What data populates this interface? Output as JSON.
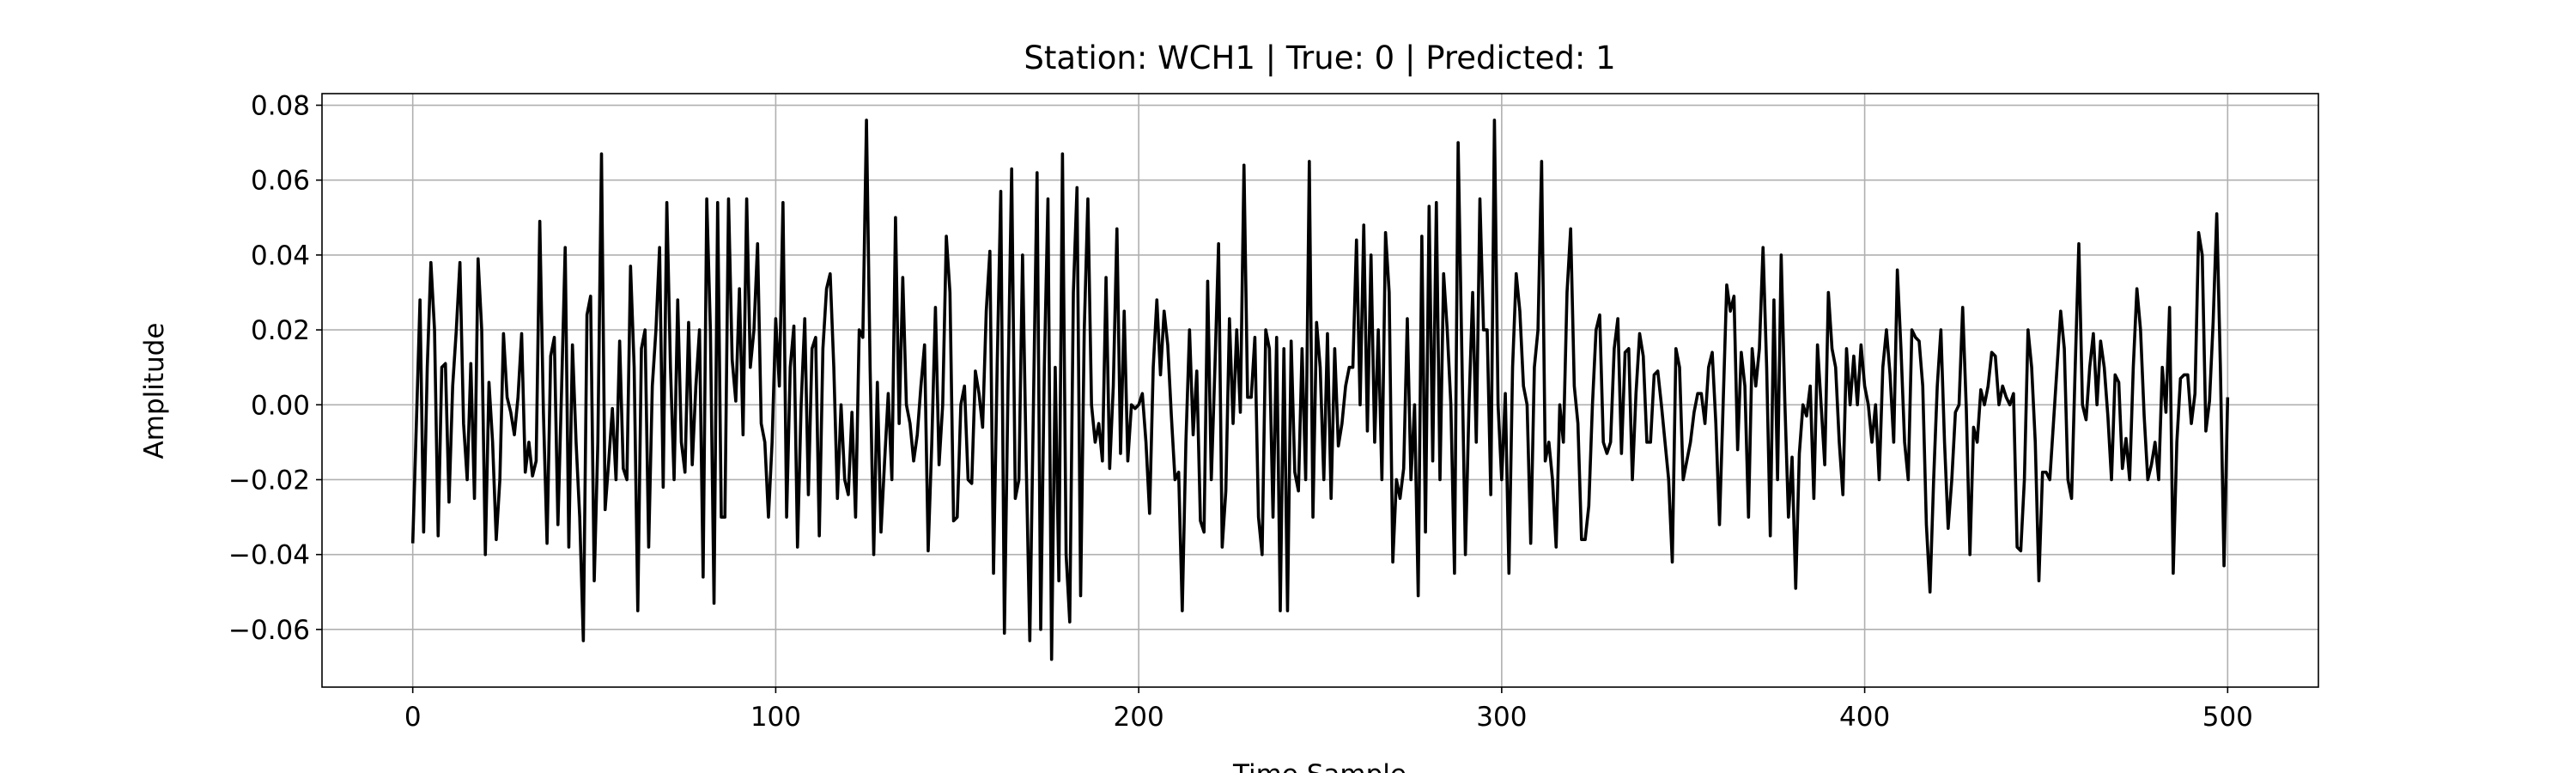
{
  "chart_data": {
    "type": "line",
    "title": "Station: WCH1 | True: 0 | Predicted: 1",
    "xlabel": "Time Sample",
    "ylabel": "Amplitude",
    "xlim": [
      -25,
      525
    ],
    "ylim": [
      -0.0754,
      0.0831
    ],
    "xticks": [
      0,
      100,
      200,
      300,
      400,
      500
    ],
    "yticks": [
      {
        "value": -0.06,
        "label": "−0.06"
      },
      {
        "value": -0.04,
        "label": "−0.04"
      },
      {
        "value": -0.02,
        "label": "−0.02"
      },
      {
        "value": 0,
        "label": "0.00"
      },
      0.02,
      0.04,
      0.06,
      0.08
    ],
    "grid": true,
    "series": [
      {
        "color": "#000000",
        "x": [
          0,
          1,
          2,
          3,
          4,
          5,
          6,
          7,
          8,
          9,
          10,
          11,
          12,
          13,
          14,
          15,
          16,
          17,
          18,
          19,
          20,
          21,
          22,
          23,
          24,
          25,
          26,
          27,
          28,
          29,
          30,
          31,
          32,
          33,
          34,
          35,
          36,
          37,
          38,
          39,
          40,
          41,
          42,
          43,
          44,
          45,
          46,
          47,
          48,
          49,
          50,
          51,
          52,
          53,
          54,
          55,
          56,
          57,
          58,
          59,
          60,
          61,
          62,
          63,
          64,
          65,
          66,
          67,
          68,
          69,
          70,
          71,
          72,
          73,
          74,
          75,
          76,
          77,
          78,
          79,
          80,
          81,
          82,
          83,
          84,
          85,
          86,
          87,
          88,
          89,
          90,
          91,
          92,
          93,
          94,
          95,
          96,
          97,
          98,
          99,
          100,
          101,
          102,
          103,
          104,
          105,
          106,
          107,
          108,
          109,
          110,
          111,
          112,
          113,
          114,
          115,
          116,
          117,
          118,
          119,
          120,
          121,
          122,
          123,
          124,
          125,
          126,
          127,
          128,
          129,
          130,
          131,
          132,
          133,
          134,
          135,
          136,
          137,
          138,
          139,
          140,
          141,
          142,
          143,
          144,
          145,
          146,
          147,
          148,
          149,
          150,
          151,
          152,
          153,
          154,
          155,
          156,
          157,
          158,
          159,
          160,
          161,
          162,
          163,
          164,
          165,
          166,
          167,
          168,
          169,
          170,
          171,
          172,
          173,
          174,
          175,
          176,
          177,
          178,
          179,
          180,
          181,
          182,
          183,
          184,
          185,
          186,
          187,
          188,
          189,
          190,
          191,
          192,
          193,
          194,
          195,
          196,
          197,
          198,
          199,
          200,
          201,
          202,
          203,
          204,
          205,
          206,
          207,
          208,
          209,
          210,
          211,
          212,
          213,
          214,
          215,
          216,
          217,
          218,
          219,
          220,
          221,
          222,
          223,
          224,
          225,
          226,
          227,
          228,
          229,
          230,
          231,
          232,
          233,
          234,
          235,
          236,
          237,
          238,
          239,
          240,
          241,
          242,
          243,
          244,
          245,
          246,
          247,
          248,
          249,
          250,
          251,
          252,
          253,
          254,
          255,
          256,
          257,
          258,
          259,
          260,
          261,
          262,
          263,
          264,
          265,
          266,
          267,
          268,
          269,
          270,
          271,
          272,
          273,
          274,
          275,
          276,
          277,
          278,
          279,
          280,
          281,
          282,
          283,
          284,
          285,
          286,
          287,
          288,
          289,
          290,
          291,
          292,
          293,
          294,
          295,
          296,
          297,
          298,
          299,
          300,
          301,
          302,
          303,
          304,
          305,
          306,
          307,
          308,
          309,
          310,
          311,
          312,
          313,
          314,
          315,
          316,
          317,
          318,
          319,
          320,
          321,
          322,
          323,
          324,
          325,
          326,
          327,
          328,
          329,
          330,
          331,
          332,
          333,
          334,
          335,
          336,
          337,
          338,
          339,
          340,
          341,
          342,
          343,
          344,
          345,
          346,
          347,
          348,
          349,
          350,
          351,
          352,
          353,
          354,
          355,
          356,
          357,
          358,
          359,
          360,
          361,
          362,
          363,
          364,
          365,
          366,
          367,
          368,
          369,
          370,
          371,
          372,
          373,
          374,
          375,
          376,
          377,
          378,
          379,
          380,
          381,
          382,
          383,
          384,
          385,
          386,
          387,
          388,
          389,
          390,
          391,
          392,
          393,
          394,
          395,
          396,
          397,
          398,
          399,
          400,
          401,
          402,
          403,
          404,
          405,
          406,
          407,
          408,
          409,
          410,
          411,
          412,
          413,
          414,
          415,
          416,
          417,
          418,
          419,
          420,
          421,
          422,
          423,
          424,
          425,
          426,
          427,
          428,
          429,
          430,
          431,
          432,
          433,
          434,
          435,
          436,
          437,
          438,
          439,
          440,
          441,
          442,
          443,
          444,
          445,
          446,
          447,
          448,
          449,
          450,
          451,
          452,
          453,
          454,
          455,
          456,
          457,
          458,
          459,
          460,
          461,
          462,
          463,
          464,
          465,
          466,
          467,
          468,
          469,
          470,
          471,
          472,
          473,
          474,
          475,
          476,
          477,
          478,
          479,
          480,
          481,
          482,
          483,
          484,
          485,
          486,
          487,
          488,
          489,
          490,
          491,
          492,
          493,
          494,
          495,
          496,
          497,
          498,
          499,
          500
        ],
        "values": [
          -0.037,
          -0.005,
          0.028,
          -0.034,
          0.01,
          0.038,
          0.02,
          -0.035,
          0.01,
          0.011,
          -0.026,
          0.005,
          0.02,
          0.038,
          -0.005,
          -0.02,
          0.011,
          -0.025,
          0.039,
          0.02,
          -0.04,
          0.006,
          -0.01,
          -0.036,
          -0.02,
          0.019,
          0.002,
          -0.002,
          -0.008,
          0.002,
          0.019,
          -0.018,
          -0.01,
          -0.019,
          -0.015,
          0.049,
          -0.002,
          -0.037,
          0.013,
          0.018,
          -0.032,
          0.004,
          0.042,
          -0.038,
          0.016,
          -0.01,
          -0.03,
          -0.063,
          0.024,
          0.029,
          -0.047,
          -0.01,
          0.067,
          -0.028,
          -0.015,
          -0.001,
          -0.02,
          0.017,
          -0.017,
          -0.02,
          0.037,
          0.01,
          -0.055,
          0.015,
          0.02,
          -0.038,
          0.005,
          0.02,
          0.042,
          -0.022,
          0.054,
          0.01,
          -0.02,
          0.028,
          -0.01,
          -0.018,
          0.022,
          -0.016,
          0.005,
          0.02,
          -0.046,
          0.055,
          0.02,
          -0.053,
          0.054,
          -0.03,
          -0.03,
          0.055,
          0.012,
          0.001,
          0.031,
          -0.008,
          0.055,
          0.01,
          0.02,
          0.043,
          -0.005,
          -0.01,
          -0.03,
          -0.01,
          0.023,
          0.005,
          0.054,
          -0.03,
          0.01,
          0.021,
          -0.038,
          0.0,
          0.023,
          -0.024,
          0.015,
          0.018,
          -0.035,
          0.015,
          0.031,
          0.035,
          0.01,
          -0.025,
          0.0,
          -0.02,
          -0.024,
          -0.002,
          -0.03,
          0.02,
          0.018,
          0.076,
          0.01,
          -0.04,
          0.006,
          -0.034,
          -0.015,
          0.003,
          -0.02,
          0.05,
          -0.005,
          0.034,
          0.0,
          -0.005,
          -0.015,
          -0.008,
          0.005,
          0.016,
          -0.039,
          -0.01,
          0.026,
          -0.016,
          0.0,
          0.045,
          0.03,
          -0.031,
          -0.03,
          0.0,
          0.005,
          -0.02,
          -0.021,
          0.009,
          0.003,
          -0.006,
          0.025,
          0.041,
          -0.045,
          0.01,
          0.057,
          -0.061,
          0.005,
          0.063,
          -0.025,
          -0.02,
          0.04,
          -0.015,
          -0.063,
          0.0,
          0.062,
          -0.06,
          0.01,
          0.055,
          -0.068,
          0.01,
          -0.047,
          0.067,
          -0.04,
          -0.058,
          0.03,
          0.058,
          -0.051,
          0.02,
          0.055,
          0.0,
          -0.01,
          -0.005,
          -0.015,
          0.034,
          -0.017,
          0.005,
          0.047,
          -0.013,
          0.025,
          -0.015,
          0.0,
          -0.001,
          0.0,
          0.003,
          -0.01,
          -0.029,
          0.01,
          0.028,
          0.008,
          0.025,
          0.016,
          -0.003,
          -0.02,
          -0.018,
          -0.055,
          -0.01,
          0.02,
          -0.008,
          0.009,
          -0.031,
          -0.034,
          0.033,
          -0.02,
          0.01,
          0.043,
          -0.038,
          -0.023,
          0.023,
          -0.005,
          0.02,
          -0.002,
          0.064,
          0.002,
          0.002,
          0.018,
          -0.03,
          -0.04,
          0.02,
          0.015,
          -0.03,
          0.018,
          -0.055,
          0.015,
          -0.055,
          0.017,
          -0.018,
          -0.023,
          0.015,
          -0.02,
          0.065,
          -0.03,
          0.022,
          0.01,
          -0.02,
          0.019,
          -0.025,
          0.015,
          -0.011,
          -0.005,
          0.005,
          0.01,
          0.01,
          0.044,
          0.0,
          0.048,
          -0.007,
          0.04,
          -0.01,
          0.02,
          -0.02,
          0.046,
          0.03,
          -0.042,
          -0.02,
          -0.025,
          -0.017,
          0.023,
          -0.02,
          0.0,
          -0.051,
          0.045,
          -0.034,
          0.053,
          -0.015,
          0.054,
          -0.02,
          0.035,
          0.02,
          0.0,
          -0.045,
          0.07,
          0.015,
          -0.04,
          0.0,
          0.03,
          -0.01,
          0.055,
          0.02,
          0.02,
          -0.024,
          0.076,
          0.0,
          -0.02,
          0.003,
          -0.045,
          0.01,
          0.035,
          0.025,
          0.005,
          0.0,
          -0.037,
          0.01,
          0.02,
          0.065,
          -0.015,
          -0.01,
          -0.02,
          -0.038,
          0.0,
          -0.01,
          0.03,
          0.047,
          0.005,
          -0.005,
          -0.036,
          -0.036,
          -0.027,
          0.0,
          0.02,
          0.024,
          -0.01,
          -0.013,
          -0.01,
          0.015,
          0.023,
          -0.013,
          0.014,
          0.015,
          -0.02,
          0.003,
          0.019,
          0.013,
          -0.01,
          -0.01,
          0.008,
          0.009,
          0.0,
          -0.01,
          -0.02,
          -0.042,
          0.015,
          0.01,
          -0.02,
          -0.015,
          -0.01,
          -0.002,
          0.003,
          0.003,
          -0.005,
          0.01,
          0.014,
          -0.005,
          -0.032,
          0.0,
          0.032,
          0.025,
          0.029,
          -0.012,
          0.014,
          0.005,
          -0.03,
          0.015,
          0.005,
          0.015,
          0.042,
          0.01,
          -0.035,
          0.028,
          -0.02,
          0.04,
          0.001,
          -0.03,
          -0.014,
          -0.049,
          -0.013,
          0.0,
          -0.003,
          0.005,
          -0.025,
          0.016,
          0.0,
          -0.016,
          0.03,
          0.015,
          0.01,
          -0.01,
          -0.024,
          0.015,
          0.0,
          0.013,
          0.0,
          0.016,
          0.005,
          0.0,
          -0.01,
          0.0,
          -0.02,
          0.01,
          0.02,
          0.008,
          -0.01,
          0.036,
          0.015,
          -0.01,
          -0.02,
          0.02,
          0.018,
          0.017,
          0.005,
          -0.032,
          -0.05,
          -0.02,
          0.005,
          0.02,
          -0.01,
          -0.033,
          -0.02,
          -0.002,
          0.0,
          0.026,
          -0.001,
          -0.04,
          -0.006,
          -0.01,
          0.004,
          0.0,
          0.005,
          0.014,
          0.013,
          0.0,
          0.005,
          0.002,
          0.0,
          0.003,
          -0.038,
          -0.039,
          -0.02,
          0.02,
          0.01,
          -0.01,
          -0.047,
          -0.018,
          -0.018,
          -0.02,
          -0.005,
          0.01,
          0.025,
          0.015,
          -0.02,
          -0.025,
          0.01,
          0.043,
          0.0,
          -0.004,
          0.01,
          0.019,
          0.0,
          0.017,
          0.01,
          -0.003,
          -0.02,
          0.008,
          0.006,
          -0.017,
          -0.009,
          -0.02,
          0.01,
          0.031,
          0.02,
          -0.003,
          -0.02,
          -0.016,
          -0.01,
          -0.02,
          0.01,
          -0.002,
          0.026,
          -0.045,
          -0.01,
          0.007,
          0.008,
          0.008,
          -0.005,
          0.003,
          0.046,
          0.04,
          -0.007,
          0.001,
          0.022,
          0.051,
          0.01,
          -0.043,
          0.002
        ]
      }
    ]
  }
}
